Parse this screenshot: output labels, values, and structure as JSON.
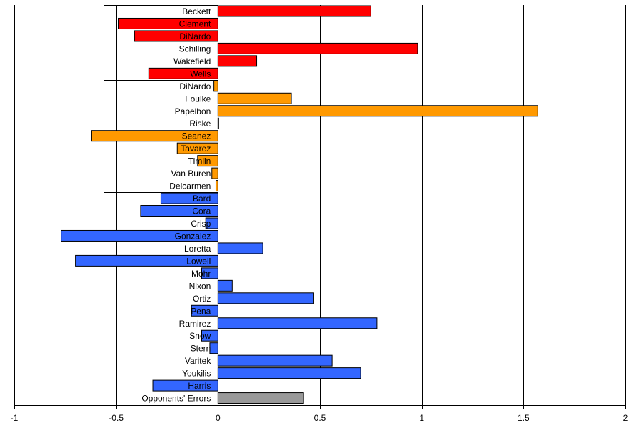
{
  "chart_data": {
    "type": "bar",
    "orientation": "horizontal",
    "xlim": [
      -1,
      2
    ],
    "x_ticks": [
      "-1",
      "-0.5",
      "0",
      "0.5",
      "1",
      "1.5",
      "2"
    ],
    "grid": true,
    "legend": "none",
    "colors": {
      "red": "#FF0000",
      "orange": "#FF9900",
      "blue": "#3366FF",
      "gray": "#999999"
    },
    "bars": [
      {
        "label": "Beckett",
        "value": 0.75,
        "color": "red"
      },
      {
        "label": "Clement",
        "value": -0.49,
        "color": "red"
      },
      {
        "label": "DiNardo",
        "value": -0.41,
        "color": "red"
      },
      {
        "label": "Schilling",
        "value": 0.98,
        "color": "red"
      },
      {
        "label": "Wakefield",
        "value": 0.19,
        "color": "red"
      },
      {
        "label": "Wells",
        "value": -0.34,
        "color": "red"
      },
      {
        "label": "DiNardo",
        "value": -0.02,
        "color": "orange"
      },
      {
        "label": "Foulke",
        "value": 0.36,
        "color": "orange"
      },
      {
        "label": "Papelbon",
        "value": 1.57,
        "color": "orange"
      },
      {
        "label": "Riske",
        "value": 0.0,
        "color": "orange"
      },
      {
        "label": "Seanez",
        "value": -0.62,
        "color": "orange"
      },
      {
        "label": "Tavarez",
        "value": -0.2,
        "color": "orange"
      },
      {
        "label": "Timlin",
        "value": -0.1,
        "color": "orange"
      },
      {
        "label": "Van Buren",
        "value": -0.03,
        "color": "orange"
      },
      {
        "label": "Delcarmen",
        "value": -0.01,
        "color": "orange"
      },
      {
        "label": "Bard",
        "value": -0.28,
        "color": "blue"
      },
      {
        "label": "Cora",
        "value": -0.38,
        "color": "blue"
      },
      {
        "label": "Crisp",
        "value": -0.06,
        "color": "blue"
      },
      {
        "label": "Gonzalez",
        "value": -0.77,
        "color": "blue"
      },
      {
        "label": "Loretta",
        "value": 0.22,
        "color": "blue"
      },
      {
        "label": "Lowell",
        "value": -0.7,
        "color": "blue"
      },
      {
        "label": "Mohr",
        "value": -0.08,
        "color": "blue"
      },
      {
        "label": "Nixon",
        "value": 0.07,
        "color": "blue"
      },
      {
        "label": "Ortiz",
        "value": 0.47,
        "color": "blue"
      },
      {
        "label": "Pena",
        "value": -0.13,
        "color": "blue"
      },
      {
        "label": "Ramirez",
        "value": 0.78,
        "color": "blue"
      },
      {
        "label": "Snow",
        "value": -0.08,
        "color": "blue"
      },
      {
        "label": "Stern",
        "value": -0.04,
        "color": "blue"
      },
      {
        "label": "Varitek",
        "value": 0.56,
        "color": "blue"
      },
      {
        "label": "Youkilis",
        "value": 0.7,
        "color": "blue"
      },
      {
        "label": "Harris",
        "value": -0.32,
        "color": "blue"
      },
      {
        "label": "Opponents' Errors",
        "value": 0.42,
        "color": "gray"
      }
    ]
  }
}
